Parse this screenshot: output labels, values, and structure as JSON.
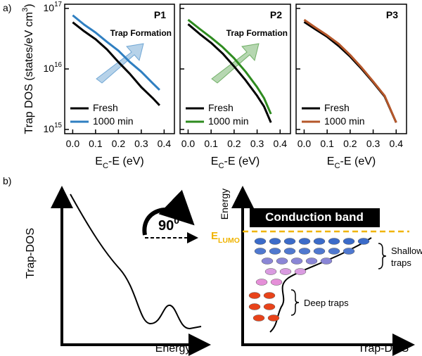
{
  "chart_data": [
    {
      "type": "line",
      "title": "P1",
      "annotation": "Trap Formation",
      "x": [
        0,
        0.05,
        0.1,
        0.15,
        0.2,
        0.25,
        0.3,
        0.35,
        0.38
      ],
      "series": [
        {
          "name": "Fresh",
          "color": "#000000",
          "values": [
            5.9e+16,
            4.2e+16,
            3.1e+16,
            2.1e+16,
            1.3e+16,
            8300000000000000.0,
            5000000000000000.0,
            3300000000000000.0,
            2500000000000000.0
          ]
        },
        {
          "name": "1000 min",
          "color": "#2f7fc1",
          "values": [
            7.7e+16,
            5.4e+16,
            4e+16,
            2.8e+16,
            2e+16,
            1.3e+16,
            9000000000000000.0,
            5800000000000000.0,
            4500000000000000.0
          ]
        }
      ],
      "xlim": [
        -0.035,
        0.445
      ],
      "xticks": [
        {
          "value": 0,
          "label": "0.0"
        },
        0.1,
        0.2,
        0.3,
        0.4
      ],
      "ylim": [
        1000000000000000.0,
        1e+17
      ],
      "yscale": "log",
      "yticks": [
        {
          "value": 1000000000000000.0,
          "label": "10^15"
        },
        {
          "value": 1e+16,
          "label": "10^16"
        },
        {
          "value": 1e+17,
          "label": "10^17"
        }
      ],
      "xlabel": "E_C-E (eV)",
      "ylabel": "Trap DOS (states/eV cm^3)",
      "legend": "lower left"
    },
    {
      "type": "line",
      "title": "P2",
      "annotation": "Trap Formation",
      "x": [
        0,
        0.05,
        0.1,
        0.15,
        0.2,
        0.25,
        0.3,
        0.33,
        0.36
      ],
      "series": [
        {
          "name": "Fresh",
          "color": "#000000",
          "values": [
            5.5e+16,
            3.8e+16,
            2.7e+16,
            1.8e+16,
            1.1e+16,
            6500000000000000.0,
            3600000000000000.0,
            2400000000000000.0,
            1300000000000000.0
          ]
        },
        {
          "name": "1000 min",
          "color": "#2e8b1f",
          "values": [
            6.5e+16,
            4.6e+16,
            3.3e+16,
            2.3e+16,
            1.5e+16,
            9000000000000000.0,
            5000000000000000.0,
            3300000000000000.0,
            1800000000000000.0
          ]
        }
      ],
      "xlim": [
        -0.035,
        0.445
      ],
      "xticks": [
        {
          "value": 0,
          "label": "0.0"
        },
        0.1,
        0.2,
        0.3,
        0.4
      ],
      "ylim": [
        1000000000000000.0,
        1e+17
      ],
      "yscale": "log",
      "yticks": [
        1000000000000000.0,
        1e+16,
        1e+17
      ],
      "xlabel": "E_C-E (eV)",
      "legend": "lower left"
    },
    {
      "type": "line",
      "title": "P3",
      "x": [
        0,
        0.05,
        0.1,
        0.15,
        0.2,
        0.25,
        0.3,
        0.35,
        0.4
      ],
      "series": [
        {
          "name": "Fresh",
          "color": "#000000",
          "values": [
            6e+16,
            4.5e+16,
            3.4e+16,
            2.4e+16,
            1.6e+16,
            1e+16,
            6000000000000000.0,
            3500000000000000.0,
            1300000000000000.0
          ]
        },
        {
          "name": "1000 min",
          "color": "#b5572a",
          "values": [
            6.5e+16,
            4.8e+16,
            3.6e+16,
            2.6e+16,
            1.7e+16,
            1.05e+16,
            6200000000000000.0,
            3600000000000000.0,
            1300000000000000.0
          ]
        }
      ],
      "xlim": [
        -0.035,
        0.445
      ],
      "xticks": [
        {
          "value": 0,
          "label": "0.0"
        },
        0.1,
        0.2,
        0.3,
        0.4
      ],
      "ylim": [
        1000000000000000.0,
        1e+17
      ],
      "yscale": "log",
      "yticks": [
        1000000000000000.0,
        1e+16,
        1e+17
      ],
      "xlabel": "E_C-E (eV)",
      "legend": "lower left"
    }
  ],
  "figure": {
    "panel_a": "a)",
    "panel_b": "b)",
    "left_diagram": {
      "y_label": "Trap-DOS",
      "x_label": "Energy",
      "rotation": "90^0"
    },
    "right_diagram": {
      "y_label": "Energy",
      "x_label": "Trap-DOS",
      "band": "Conduction band",
      "lumo": "E_LUMO",
      "shallow_traps": [
        "Shallow",
        "traps"
      ],
      "deep_traps": "Deep traps"
    }
  }
}
